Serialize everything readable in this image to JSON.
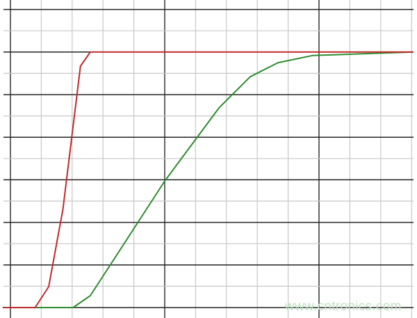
{
  "chart_data": {
    "type": "line",
    "title": "",
    "xlabel": "",
    "ylabel": "",
    "xlim": [
      -0.25,
      13.05
    ],
    "ylim": [
      -0.25,
      7
    ],
    "grid": true,
    "grid_minor_x_step": 1,
    "grid_major_x_every": 5,
    "grid_minor_y_step": 0.5,
    "grid_major_y_step": 1,
    "series": [
      {
        "color": "#c0282a",
        "points": [
          [
            -0.25,
            0
          ],
          [
            0.8,
            0
          ],
          [
            1.24,
            0.49
          ],
          [
            1.7,
            2.3
          ],
          [
            2.27,
            5.67
          ],
          [
            2.59,
            6.0
          ],
          [
            13.05,
            6.0
          ]
        ]
      },
      {
        "color": "#2e8b2e",
        "points": [
          [
            -0.25,
            0
          ],
          [
            2.03,
            0
          ],
          [
            2.59,
            0.28
          ],
          [
            5.0,
            2.97
          ],
          [
            6.76,
            4.69
          ],
          [
            7.77,
            5.42
          ],
          [
            8.67,
            5.75
          ],
          [
            9.8,
            5.92
          ],
          [
            13.05,
            6.0
          ]
        ]
      }
    ]
  },
  "watermark": "www.cntronics.com"
}
